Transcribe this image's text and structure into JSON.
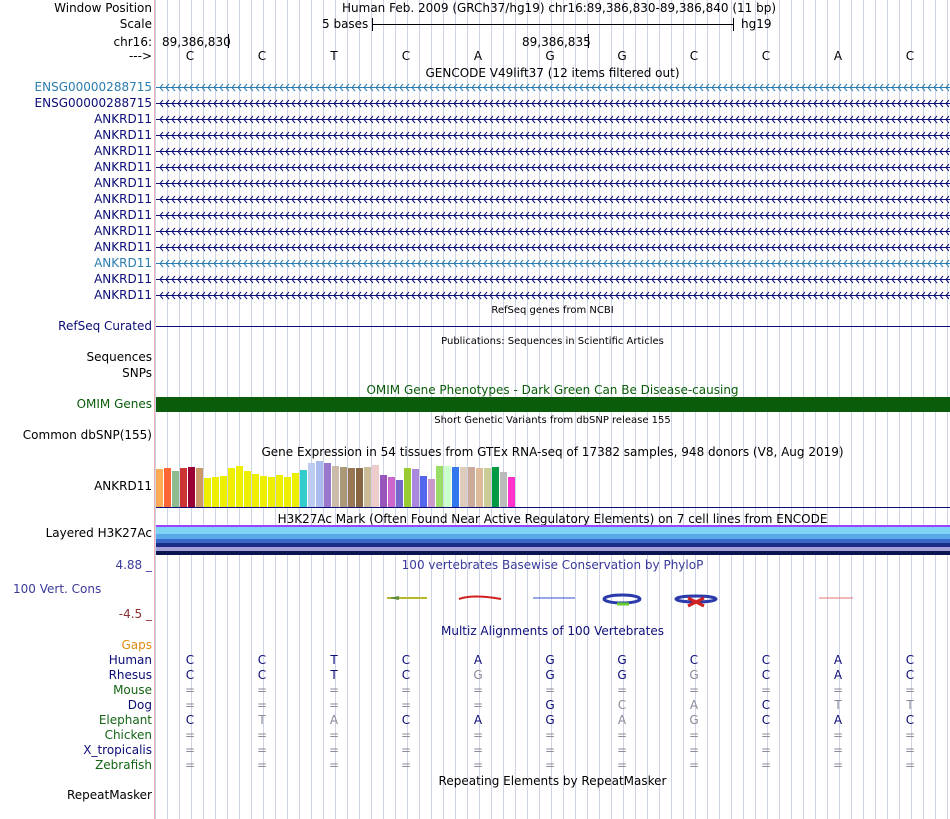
{
  "header": {
    "window_position_label": "Window Position",
    "window_position_text": "Human Feb. 2009 (GRCh37/hg19)   chr16:89,386,830-89,386,840 (11 bp)",
    "scale_label": "Scale",
    "scale_text": "5 bases",
    "scale_db": "hg19",
    "chrom_label": "chr16:",
    "coord1": "89,386,830",
    "coord2": "89,386,835",
    "arrow_label": "--->",
    "bases": [
      "C",
      "C",
      "T",
      "C",
      "A",
      "G",
      "G",
      "C",
      "C",
      "A",
      "C"
    ]
  },
  "gencode": {
    "title": "GENCODE V49lift37 (12 items filtered out)",
    "genes": [
      {
        "name": "ENSG00000288715",
        "color": "#2a7cb0"
      },
      {
        "name": "ENSG00000288715",
        "color": "#0c0c78"
      },
      {
        "name": "ANKRD11",
        "color": "#0c0c78"
      },
      {
        "name": "ANKRD11",
        "color": "#0c0c78"
      },
      {
        "name": "ANKRD11",
        "color": "#0c0c78"
      },
      {
        "name": "ANKRD11",
        "color": "#0c0c78"
      },
      {
        "name": "ANKRD11",
        "color": "#0c0c78"
      },
      {
        "name": "ANKRD11",
        "color": "#0c0c78"
      },
      {
        "name": "ANKRD11",
        "color": "#0c0c78"
      },
      {
        "name": "ANKRD11",
        "color": "#0c0c78"
      },
      {
        "name": "ANKRD11",
        "color": "#0c0c78"
      },
      {
        "name": "ANKRD11",
        "color": "#2a7cb0"
      },
      {
        "name": "ANKRD11",
        "color": "#0c0c78"
      },
      {
        "name": "ANKRD11",
        "color": "#0c0c78"
      }
    ]
  },
  "refseq": {
    "title": "RefSeq genes from NCBI",
    "label": "RefSeq Curated"
  },
  "publications": {
    "title": "Publications: Sequences in Scientific Articles",
    "label1": "Sequences",
    "label2": "SNPs"
  },
  "omim": {
    "title": "OMIM Gene Phenotypes - Dark Green Can Be Disease-causing",
    "label": "OMIM Genes",
    "color": "#0a5c0a"
  },
  "dbsnp": {
    "title": "Short Genetic Variants from dbSNP release 155",
    "label": "Common dbSNP(155)"
  },
  "gtex": {
    "title": "Gene Expression in 54 tissues from GTEx RNA-seq of 17382 samples, 948 donors (V8, Aug 2019)",
    "label": "ANKRD11",
    "bars": [
      {
        "color": "#ffaa55",
        "level": 0.82
      },
      {
        "color": "#ff6633",
        "level": 0.85
      },
      {
        "color": "#8fbc8f",
        "level": 0.78
      },
      {
        "color": "#cc3333",
        "level": 0.85
      },
      {
        "color": "#990033",
        "level": 0.87
      },
      {
        "color": "#cc9966",
        "level": 0.85
      },
      {
        "color": "#eeee00",
        "level": 0.62
      },
      {
        "color": "#eeee00",
        "level": 0.65
      },
      {
        "color": "#eeee00",
        "level": 0.68
      },
      {
        "color": "#eeee00",
        "level": 0.85
      },
      {
        "color": "#eeee00",
        "level": 0.9
      },
      {
        "color": "#eeee00",
        "level": 0.78
      },
      {
        "color": "#eeee00",
        "level": 0.72
      },
      {
        "color": "#eeee00",
        "level": 0.68
      },
      {
        "color": "#eeee00",
        "level": 0.66
      },
      {
        "color": "#eeee00",
        "level": 0.7
      },
      {
        "color": "#eeee00",
        "level": 0.66
      },
      {
        "color": "#eeee00",
        "level": 0.74
      },
      {
        "color": "#33cccc",
        "level": 0.8
      },
      {
        "color": "#bbccee",
        "level": 0.95
      },
      {
        "color": "#aabbee",
        "level": 1.0
      },
      {
        "color": "#9977cc",
        "level": 0.95
      },
      {
        "color": "#ccbbaa",
        "level": 0.9
      },
      {
        "color": "#aa9977",
        "level": 0.88
      },
      {
        "color": "#997755",
        "level": 0.85
      },
      {
        "color": "#886644",
        "level": 0.85
      },
      {
        "color": "#ccbb99",
        "level": 0.88
      },
      {
        "color": "#eecccc",
        "level": 0.92
      },
      {
        "color": "#9955bb",
        "level": 0.7
      },
      {
        "color": "#cc66cc",
        "level": 0.65
      },
      {
        "color": "#7766cc",
        "level": 0.58
      },
      {
        "color": "#99cc33",
        "level": 0.85
      },
      {
        "color": "#aa88dd",
        "level": 0.82
      },
      {
        "color": "#5566ee",
        "level": 0.68
      },
      {
        "color": "#cc99cc",
        "level": 0.6
      },
      {
        "color": "#99dd66",
        "level": 0.9
      },
      {
        "color": "#ccffcc",
        "level": 0.9
      },
      {
        "color": "#3377ee",
        "level": 0.88
      },
      {
        "color": "#ddccbb",
        "level": 0.88
      },
      {
        "color": "#ccaa99",
        "level": 0.86
      },
      {
        "color": "#ddbb99",
        "level": 0.85
      },
      {
        "color": "#cccc99",
        "level": 0.85
      },
      {
        "color": "#009944",
        "level": 0.88
      },
      {
        "color": "#bbbbbb",
        "level": 0.75
      },
      {
        "color": "#ff33cc",
        "level": 0.66
      }
    ]
  },
  "h3k27ac": {
    "title": "H3K27Ac Mark (Often Found Near Active Regulatory Elements) on 7 cell lines from ENCODE",
    "label": "Layered H3K27Ac",
    "colors": [
      "#9a44ff",
      "#7fd3f5",
      "#5aa8e8",
      "#3a68c8",
      "#1c2c88",
      "#a3a0d8",
      "#0a1450"
    ]
  },
  "phylop": {
    "title": "100 vertebrates Basewise Conservation by PhyloP",
    "label": "100 Vert. Cons",
    "max": "4.88 _",
    "min": "-4.5 _"
  },
  "multiz": {
    "title": "Multiz Alignments of 100 Vertebrates",
    "gaps_label": "Gaps",
    "rows": [
      {
        "species": "Human",
        "color": "#0c0c78",
        "bases": [
          "C",
          "C",
          "T",
          "C",
          "A",
          "G",
          "G",
          "C",
          "C",
          "A",
          "C"
        ],
        "dim": []
      },
      {
        "species": "Rhesus",
        "color": "#0c0c78",
        "bases": [
          "C",
          "C",
          "T",
          "C",
          "G",
          "G",
          "G",
          "G",
          "C",
          "A",
          "C"
        ],
        "dim": [
          4,
          7
        ]
      },
      {
        "species": "Mouse",
        "color": "#146414",
        "bases": [
          "=",
          "=",
          "=",
          "=",
          "=",
          "=",
          "=",
          "=",
          "=",
          "=",
          "="
        ],
        "dim": [
          0,
          1,
          2,
          3,
          4,
          5,
          6,
          7,
          8,
          9,
          10
        ]
      },
      {
        "species": "Dog",
        "color": "#0c0c78",
        "bases": [
          "=",
          "=",
          "=",
          "=",
          "=",
          "G",
          "C",
          "A",
          "C",
          "T",
          "T"
        ],
        "dim": [
          0,
          1,
          2,
          3,
          4,
          6,
          7,
          9,
          10
        ]
      },
      {
        "species": "Elephant",
        "color": "#146414",
        "bases": [
          "C",
          "T",
          "A",
          "C",
          "A",
          "G",
          "A",
          "G",
          "C",
          "A",
          "C"
        ],
        "dim": [
          1,
          2,
          6,
          7
        ]
      },
      {
        "species": "Chicken",
        "color": "#146414",
        "bases": [
          "=",
          "=",
          "=",
          "=",
          "=",
          "=",
          "=",
          "=",
          "=",
          "=",
          "="
        ],
        "dim": [
          0,
          1,
          2,
          3,
          4,
          5,
          6,
          7,
          8,
          9,
          10
        ]
      },
      {
        "species": "X_tropicalis",
        "color": "#0c0c78",
        "bases": [
          "=",
          "=",
          "=",
          "=",
          "=",
          "=",
          "=",
          "=",
          "=",
          "=",
          "="
        ],
        "dim": [
          0,
          1,
          2,
          3,
          4,
          5,
          6,
          7,
          8,
          9,
          10
        ]
      },
      {
        "species": "Zebrafish",
        "color": "#146414",
        "bases": [
          "=",
          "=",
          "=",
          "=",
          "=",
          "=",
          "=",
          "=",
          "=",
          "=",
          "="
        ],
        "dim": [
          0,
          1,
          2,
          3,
          4,
          5,
          6,
          7,
          8,
          9,
          10
        ]
      }
    ]
  },
  "repeatmasker": {
    "title": "Repeating Elements by RepeatMasker",
    "label": "RepeatMasker"
  }
}
